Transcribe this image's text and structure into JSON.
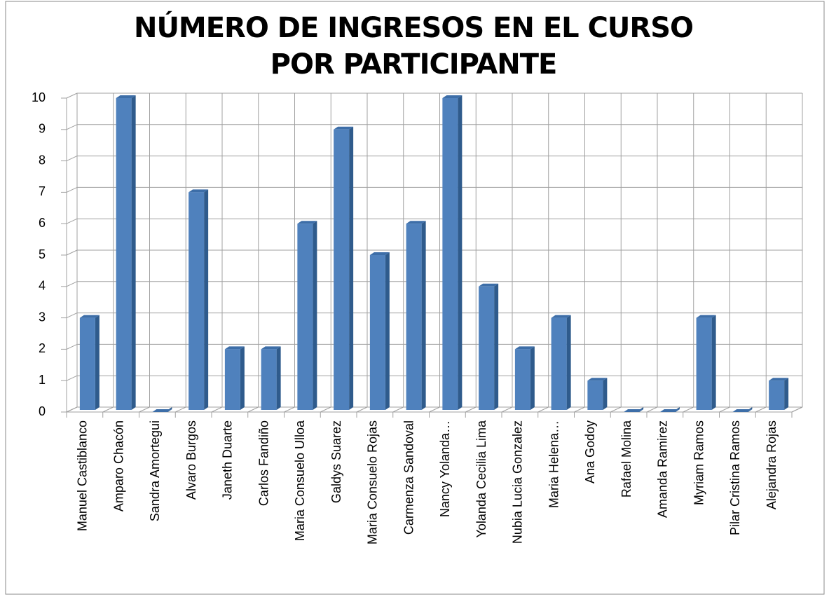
{
  "chart_data": {
    "type": "bar3d",
    "title": "NÚMERO DE INGRESOS EN EL CURSO POR PARTICIPANTE",
    "categories": [
      "Manuel Castiblanco",
      "Amparo Chacón",
      "Sandra Amortegui",
      "Alvaro Burgos",
      "Janeth Duarte",
      "Carlos Fandiño",
      "Maria Consuelo Ulloa",
      "Galdys Suarez",
      "Maria Consuelo Rojas",
      "Carmenza Sandoval",
      "Nancy Yolanda…",
      "Yolanda Cecilia Lima",
      "Nubia Lucia Gonzalez",
      "Maria Helena…",
      "Ana Godoy",
      "Rafael Molina",
      "Amanda Ramirez",
      "Myriam Ramos",
      "Pilar Cristina Ramos",
      "Alejandra Rojas"
    ],
    "values": [
      3,
      10,
      0,
      7,
      2,
      2,
      6,
      9,
      5,
      6,
      10,
      4,
      2,
      3,
      1,
      0,
      0,
      3,
      0,
      1
    ],
    "color": "#4f81bd",
    "ylim": [
      0,
      10
    ],
    "yticks": [
      0,
      1,
      2,
      3,
      4,
      5,
      6,
      7,
      8,
      9,
      10
    ],
    "grid": true
  }
}
